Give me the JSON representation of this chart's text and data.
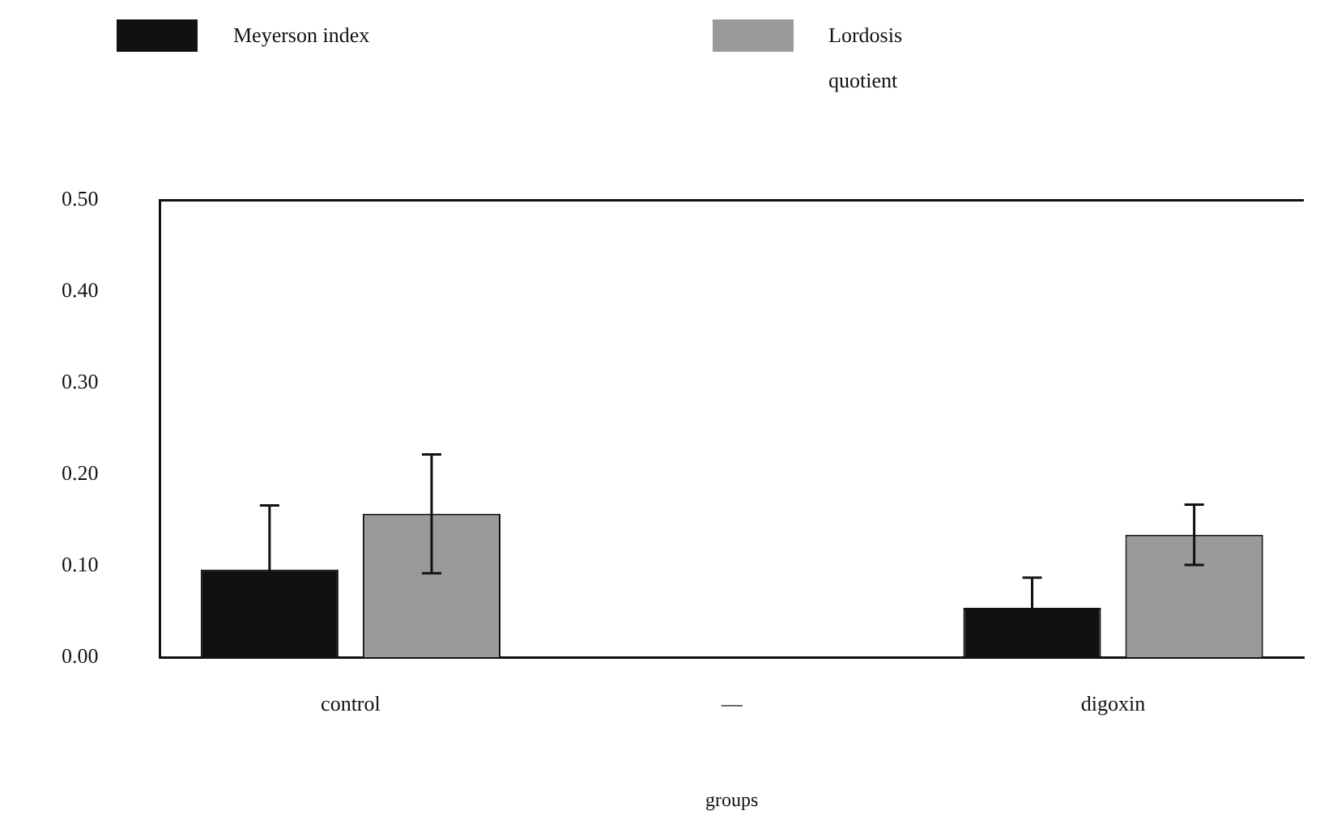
{
  "chart_data": {
    "type": "bar",
    "xlabel": "groups",
    "categories": [
      "control",
      "—",
      "digoxin"
    ],
    "series": [
      {
        "name": "Meyerson index",
        "color": "#111111",
        "values": [
          0.096,
          null,
          0.054
        ],
        "errors": [
          0.07,
          null,
          0.033
        ]
      },
      {
        "name": "Lordosis quotient",
        "color": "#9a9a9a",
        "values": [
          0.157,
          null,
          0.134
        ],
        "errors": [
          0.065,
          null,
          0.033
        ]
      }
    ],
    "ylim": [
      0,
      0.5
    ],
    "yticks": [
      {
        "value": 0,
        "label": "0.00"
      },
      {
        "value": 0.1,
        "label": "0.10"
      },
      {
        "value": 0.2,
        "label": "0.20"
      },
      {
        "value": 0.3,
        "label": "0.30"
      },
      {
        "value": 0.4,
        "label": "0.40"
      },
      {
        "value": 0.5,
        "label": "0.50"
      }
    ],
    "grid": false,
    "legend": "top left"
  }
}
